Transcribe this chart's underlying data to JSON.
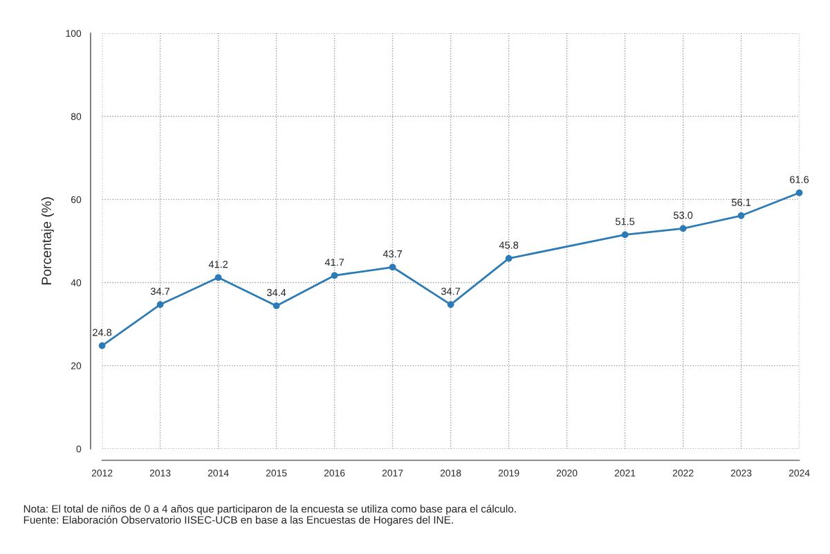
{
  "chart_data": {
    "type": "line",
    "ylabel": "Porcentaje (%)",
    "x": [
      2012,
      2013,
      2014,
      2015,
      2016,
      2017,
      2018,
      2019,
      2021,
      2022,
      2023,
      2024
    ],
    "series": [
      {
        "color": "#2c7bb6",
        "values": [
          24.8,
          34.7,
          41.2,
          34.4,
          41.7,
          43.7,
          34.7,
          45.8,
          51.5,
          53.0,
          56.1,
          61.6
        ]
      }
    ],
    "xlim": [
      2012,
      2024
    ],
    "xticks": [
      2012,
      2013,
      2014,
      2015,
      2016,
      2017,
      2018,
      2019,
      2020,
      2021,
      2022,
      2023,
      2024
    ],
    "ylim": [
      0,
      100
    ],
    "yticks": [
      0,
      20,
      40,
      60,
      80,
      100
    ],
    "value_labels": [
      "24.8",
      "34.7",
      "41.2",
      "34.4",
      "41.7",
      "43.7",
      "34.7",
      "45.8",
      "51.5",
      "53.0",
      "56.1",
      "61.6"
    ],
    "grid": true,
    "marker": "circle",
    "line_style": "solid",
    "annotations": [
      "Nota: El total de niños de 0 a 4 años que participaron de la encuesta se utiliza como base para el cálculo.",
      "Fuente: Elaboración Observatorio IISEC-UCB en base a las Encuestas de Hogares del INE."
    ]
  }
}
